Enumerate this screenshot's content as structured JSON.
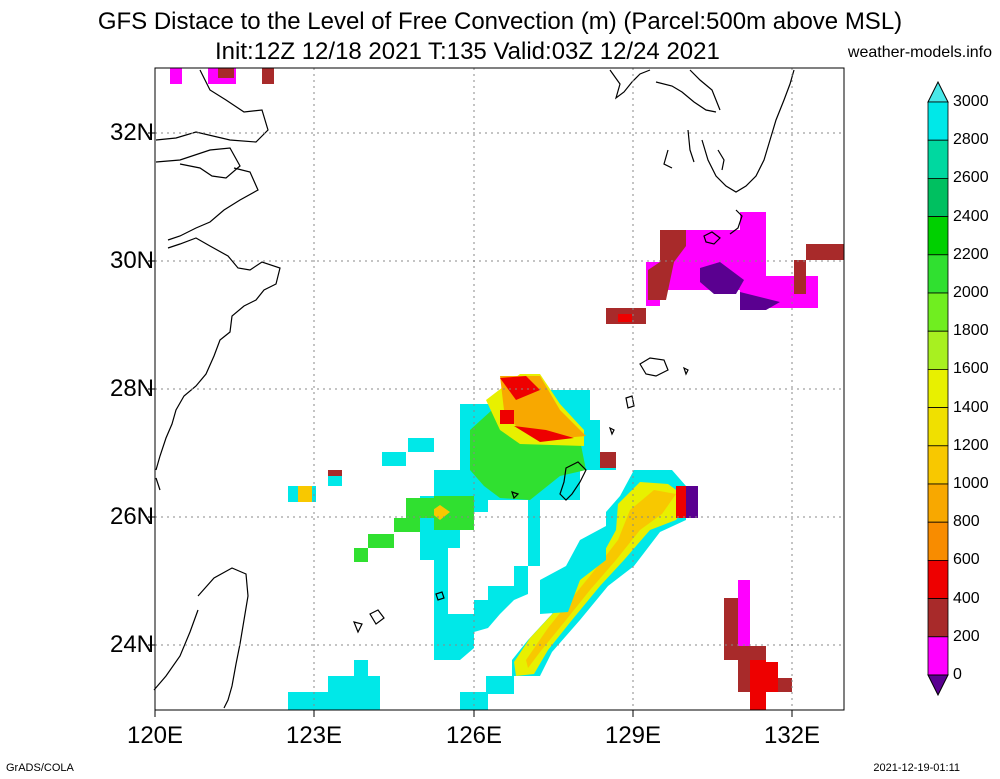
{
  "title": {
    "line1": "GFS Distace to the Level of Free Convection (m) (Parcel:500m above MSL)",
    "line2": "Init:12Z 12/18 2021 T:135 Valid:03Z 12/24 2021",
    "site": "weather-models.info"
  },
  "map": {
    "lat_labels": [
      "32N",
      "30N",
      "28N",
      "26N",
      "24N"
    ],
    "lon_labels": [
      "120E",
      "123E",
      "126E",
      "129E",
      "132E"
    ],
    "lon_range": [
      120,
      133
    ],
    "lat_range": [
      23,
      33
    ]
  },
  "colorbar": {
    "labels": [
      "3000",
      "2800",
      "2600",
      "2400",
      "2200",
      "2000",
      "1800",
      "1600",
      "1400",
      "1200",
      "1000",
      "800",
      "600",
      "400",
      "200",
      "0"
    ],
    "colors": [
      "#00e8e8",
      "#00d8a0",
      "#00c060",
      "#00d000",
      "#30e030",
      "#70ee20",
      "#a8f020",
      "#e8f000",
      "#f0e000",
      "#f8c800",
      "#f8a800",
      "#f88c00",
      "#ee0000",
      "#a82a2a",
      "#ff00ff",
      "#5a0090"
    ],
    "top_arrow_color": "#48e8e8",
    "bottom_arrow_color": "#5a0090"
  },
  "footer": {
    "left": "GrADS/COLA",
    "right": "2021-12-19-01:11"
  }
}
